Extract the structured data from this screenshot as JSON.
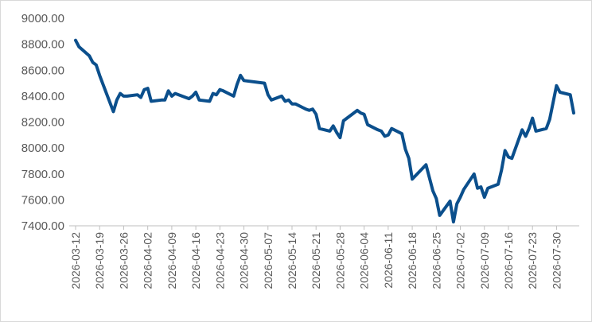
{
  "chart_data": {
    "type": "line",
    "title": "",
    "xlabel": "",
    "ylabel": "",
    "ylim": [
      7400,
      9000
    ],
    "yticks": [
      "9000.00",
      "8800.00",
      "8600.00",
      "8400.00",
      "8200.00",
      "8000.00",
      "7800.00",
      "7600.00",
      "7400.00"
    ],
    "xticks": [
      "2026-03-12",
      "2026-03-19",
      "2026-03-26",
      "2026-04-02",
      "2026-04-09",
      "2026-04-16",
      "2026-04-23",
      "2026-04-30",
      "2026-05-07",
      "2026-05-14",
      "2026-05-21",
      "2026-05-28",
      "2026-06-04",
      "2026-06-11",
      "2026-06-18",
      "2026-06-25",
      "2026-07-02",
      "2026-07-09",
      "2026-07-16",
      "2026-07-23",
      "2026-07-30"
    ],
    "grid": false,
    "legend": "none",
    "colors": {
      "line": "#0b4f8c",
      "axis": "#bfbfbf",
      "text": "#595959"
    },
    "series": [
      {
        "points": [
          [
            "2026-03-12",
            8830
          ],
          [
            "2026-03-13",
            8780
          ],
          [
            "2026-03-16",
            8710
          ],
          [
            "2026-03-17",
            8660
          ],
          [
            "2026-03-18",
            8640
          ],
          [
            "2026-03-19",
            8560
          ],
          [
            "2026-03-20",
            8490
          ],
          [
            "2026-03-23",
            8280
          ],
          [
            "2026-03-24",
            8370
          ],
          [
            "2026-03-25",
            8420
          ],
          [
            "2026-03-26",
            8400
          ],
          [
            "2026-03-27",
            8400
          ],
          [
            "2026-03-30",
            8410
          ],
          [
            "2026-03-31",
            8390
          ],
          [
            "2026-04-01",
            8450
          ],
          [
            "2026-04-02",
            8460
          ],
          [
            "2026-04-03",
            8360
          ],
          [
            "2026-04-06",
            8370
          ],
          [
            "2026-04-07",
            8370
          ],
          [
            "2026-04-08",
            8440
          ],
          [
            "2026-04-09",
            8400
          ],
          [
            "2026-04-10",
            8420
          ],
          [
            "2026-04-13",
            8390
          ],
          [
            "2026-04-14",
            8380
          ],
          [
            "2026-04-15",
            8400
          ],
          [
            "2026-04-16",
            8430
          ],
          [
            "2026-04-17",
            8370
          ],
          [
            "2026-04-20",
            8360
          ],
          [
            "2026-04-21",
            8420
          ],
          [
            "2026-04-22",
            8410
          ],
          [
            "2026-04-23",
            8450
          ],
          [
            "2026-04-24",
            8440
          ],
          [
            "2026-04-27",
            8400
          ],
          [
            "2026-04-28",
            8490
          ],
          [
            "2026-04-29",
            8560
          ],
          [
            "2026-04-30",
            8520
          ],
          [
            "2026-05-06",
            8500
          ],
          [
            "2026-05-07",
            8410
          ],
          [
            "2026-05-08",
            8370
          ],
          [
            "2026-05-11",
            8400
          ],
          [
            "2026-05-12",
            8360
          ],
          [
            "2026-05-13",
            8370
          ],
          [
            "2026-05-14",
            8340
          ],
          [
            "2026-05-15",
            8340
          ],
          [
            "2026-05-18",
            8300
          ],
          [
            "2026-05-19",
            8290
          ],
          [
            "2026-05-20",
            8300
          ],
          [
            "2026-05-21",
            8260
          ],
          [
            "2026-05-22",
            8150
          ],
          [
            "2026-05-25",
            8130
          ],
          [
            "2026-05-26",
            8170
          ],
          [
            "2026-05-27",
            8120
          ],
          [
            "2026-05-28",
            8080
          ],
          [
            "2026-05-29",
            8210
          ],
          [
            "2026-06-01",
            8270
          ],
          [
            "2026-06-02",
            8290
          ],
          [
            "2026-06-03",
            8270
          ],
          [
            "2026-06-04",
            8260
          ],
          [
            "2026-06-05",
            8180
          ],
          [
            "2026-06-08",
            8140
          ],
          [
            "2026-06-09",
            8130
          ],
          [
            "2026-06-10",
            8090
          ],
          [
            "2026-06-11",
            8100
          ],
          [
            "2026-06-12",
            8150
          ],
          [
            "2026-06-15",
            8110
          ],
          [
            "2026-06-16",
            7990
          ],
          [
            "2026-06-17",
            7920
          ],
          [
            "2026-06-18",
            7760
          ],
          [
            "2026-06-22",
            7870
          ],
          [
            "2026-06-23",
            7770
          ],
          [
            "2026-06-24",
            7670
          ],
          [
            "2026-06-25",
            7610
          ],
          [
            "2026-06-26",
            7480
          ],
          [
            "2026-06-29",
            7590
          ],
          [
            "2026-06-30",
            7430
          ],
          [
            "2026-07-01",
            7570
          ],
          [
            "2026-07-02",
            7620
          ],
          [
            "2026-07-03",
            7680
          ],
          [
            "2026-07-06",
            7800
          ],
          [
            "2026-07-07",
            7690
          ],
          [
            "2026-07-08",
            7700
          ],
          [
            "2026-07-09",
            7620
          ],
          [
            "2026-07-10",
            7690
          ],
          [
            "2026-07-13",
            7720
          ],
          [
            "2026-07-14",
            7830
          ],
          [
            "2026-07-15",
            7980
          ],
          [
            "2026-07-16",
            7930
          ],
          [
            "2026-07-17",
            7920
          ],
          [
            "2026-07-20",
            8140
          ],
          [
            "2026-07-21",
            8090
          ],
          [
            "2026-07-22",
            8150
          ],
          [
            "2026-07-23",
            8230
          ],
          [
            "2026-07-24",
            8130
          ],
          [
            "2026-07-27",
            8150
          ],
          [
            "2026-07-28",
            8220
          ],
          [
            "2026-07-29",
            8350
          ],
          [
            "2026-07-30",
            8480
          ],
          [
            "2026-07-31",
            8430
          ],
          [
            "2026-08-03",
            8410
          ],
          [
            "2026-08-04",
            8270
          ]
        ]
      }
    ]
  }
}
